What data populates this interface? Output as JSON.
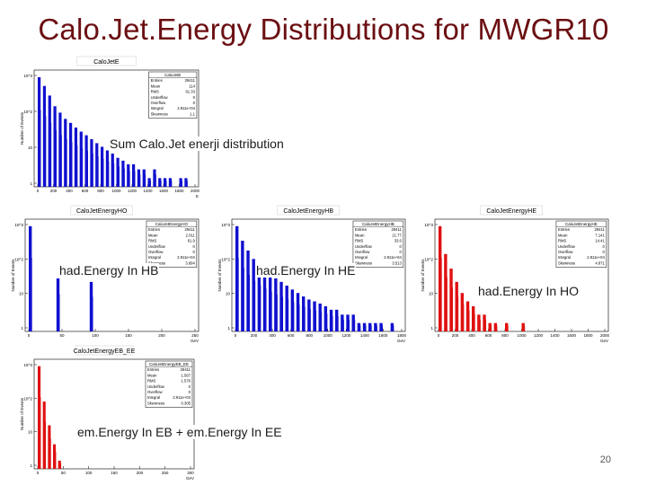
{
  "slide": {
    "title": "Calo.Jet.Energy Distributions for MWGR10",
    "page_number": "20"
  },
  "colors": {
    "title": "#6b0f12",
    "blue_hist": "#1010d0",
    "red_hist": "#e01010"
  },
  "plots": [
    {
      "id": "calojet-e",
      "hist_title": "CaloJetE",
      "ylabel": "Number of Events",
      "xlabel": "E",
      "caption": "Sum Calo.Jet enerji distribution",
      "stats": {
        "name": "CaloJetE",
        "rows": [
          [
            "Entries",
            "29411"
          ],
          [
            "Mean",
            "114"
          ],
          [
            "RMS",
            "61.33"
          ],
          [
            "Underflow",
            "0"
          ],
          [
            "Overflow",
            "0"
          ],
          [
            "Integral",
            "2.911e+04"
          ],
          [
            "Skewness",
            "1.1"
          ]
        ]
      },
      "chart_data": {
        "type": "bar",
        "color": "blue",
        "scale": "log",
        "ytick_labels": [
          "10^3",
          "10^2",
          "10",
          "1"
        ],
        "xtick_labels": [
          "0",
          "200",
          "400",
          "600",
          "800",
          "1000",
          "1200",
          "1400",
          "1600",
          "1800",
          "2000"
        ],
        "xlim": [
          0,
          2000
        ],
        "approx_values": [
          3000,
          1500,
          700,
          300,
          180,
          110,
          80,
          55,
          40,
          30,
          22,
          16,
          12,
          9,
          7,
          5,
          4,
          3,
          3,
          2,
          2,
          1,
          2,
          1,
          1,
          1,
          0,
          1,
          1,
          0
        ]
      }
    },
    {
      "id": "calojet-energy-ho",
      "hist_title": "CaloJetEnergyHO",
      "ylabel": "Number of Events",
      "xlabel": "GeV",
      "caption": "had.Energy In HB",
      "stats": {
        "name": "CaloJetEnergyHO",
        "rows": [
          [
            "Entries",
            "29411"
          ],
          [
            "Mean",
            "2.011"
          ],
          [
            "RMS",
            "61.9"
          ],
          [
            "Underflow",
            "0"
          ],
          [
            "Overflow",
            "0"
          ],
          [
            "Integral",
            "2.911e+04"
          ],
          [
            "Skewness",
            "3.694"
          ]
        ]
      },
      "chart_data": {
        "type": "bar",
        "color": "blue",
        "scale": "log",
        "ytick_labels": [
          "10^3",
          "10^2",
          "10",
          "1"
        ],
        "xtick_labels": [
          "0",
          "50",
          "100",
          "150",
          "200",
          "250"
        ],
        "xlim": [
          0,
          250
        ],
        "approx_values": [
          3000,
          0,
          0,
          0,
          0,
          40,
          0,
          0,
          0,
          0,
          0,
          30,
          0,
          0,
          0,
          0,
          0,
          0,
          0,
          0,
          0,
          0,
          0,
          0,
          0,
          0,
          0,
          0,
          0,
          0
        ]
      }
    },
    {
      "id": "calojet-energy-hb",
      "hist_title": "CaloJetEnergyHB",
      "ylabel": "Number of Events",
      "xlabel": "GeV",
      "caption": "had.Energy In HE",
      "stats": {
        "name": "CaloJetEnergyHB",
        "rows": [
          [
            "Entries",
            "29411"
          ],
          [
            "Mean",
            "21.77"
          ],
          [
            "RMS",
            "33.6"
          ],
          [
            "Underflow",
            "0"
          ],
          [
            "Overflow",
            "0"
          ],
          [
            "Integral",
            "2.911e+04"
          ],
          [
            "Skewness",
            "3.513"
          ]
        ]
      },
      "chart_data": {
        "type": "bar",
        "color": "blue",
        "scale": "log",
        "ytick_labels": [
          "10^3",
          "10^2",
          "10",
          "1"
        ],
        "xtick_labels": [
          "0",
          "200",
          "400",
          "600",
          "800",
          "1000",
          "1200",
          "1400",
          "1600",
          "1800"
        ],
        "xlim": [
          0,
          1800
        ],
        "approx_values": [
          3000,
          900,
          400,
          200,
          120,
          80,
          55,
          40,
          30,
          22,
          16,
          12,
          9,
          7,
          6,
          5,
          4,
          3,
          3,
          2,
          2,
          2,
          1,
          1,
          1,
          1,
          1,
          0,
          1,
          0
        ]
      }
    },
    {
      "id": "calojet-energy-he",
      "hist_title": "CaloJetEnergyHE",
      "ylabel": "Number of Events",
      "xlabel": "GeV",
      "caption": "had.Energy In HO",
      "stats": {
        "name": "CaloJetEnergyHE",
        "rows": [
          [
            "Entries",
            "29411"
          ],
          [
            "Mean",
            "7.141"
          ],
          [
            "RMS",
            "14.41"
          ],
          [
            "Underflow",
            "0"
          ],
          [
            "Overflow",
            "0"
          ],
          [
            "Integral",
            "2.911e+04"
          ],
          [
            "Skewness",
            "4.871"
          ]
        ]
      },
      "chart_data": {
        "type": "bar",
        "color": "red",
        "scale": "log",
        "ytick_labels": [
          "10^3",
          "10^2",
          "10",
          "1"
        ],
        "xtick_labels": [
          "0",
          "200",
          "400",
          "600",
          "800",
          "1000",
          "1200",
          "1400",
          "1600",
          "1800",
          "2000"
        ],
        "xlim": [
          0,
          2000
        ],
        "approx_values": [
          3000,
          300,
          90,
          30,
          12,
          6,
          4,
          2,
          2,
          1,
          1,
          0,
          1,
          0,
          0,
          1,
          0,
          0,
          0,
          0,
          0,
          0,
          0,
          0,
          0,
          0,
          0,
          0,
          0,
          0
        ]
      }
    },
    {
      "id": "calojet-energy-eb-ee",
      "hist_title": "CaloJetEnergyEB_EE",
      "ylabel": "Number of Events",
      "xlabel": "GeV",
      "caption": "em.Energy In EB + em.Energy In EE",
      "stats": {
        "name": "CaloJetEnergyEB_EE",
        "rows": [
          [
            "Entries",
            "29411"
          ],
          [
            "Mean",
            "1.567"
          ],
          [
            "RMS",
            "1.576"
          ],
          [
            "Underflow",
            "0"
          ],
          [
            "Overflow",
            "0"
          ],
          [
            "Integral",
            "2.911e+04"
          ],
          [
            "Skewness",
            "0.305"
          ]
        ]
      },
      "chart_data": {
        "type": "bar",
        "color": "red",
        "scale": "log",
        "ytick_labels": [
          "10^3",
          "10^2",
          "10",
          "1"
        ],
        "xtick_labels": [
          "0",
          "50",
          "100",
          "150",
          "200",
          "250",
          "300"
        ],
        "xlim": [
          0,
          300
        ],
        "approx_values": [
          3000,
          150,
          20,
          4,
          1,
          0,
          0,
          0,
          0,
          0,
          0,
          0,
          0,
          0,
          0,
          0,
          0,
          0,
          0,
          0,
          0,
          0,
          0,
          0,
          0,
          0,
          0,
          0,
          0,
          0
        ]
      }
    }
  ]
}
